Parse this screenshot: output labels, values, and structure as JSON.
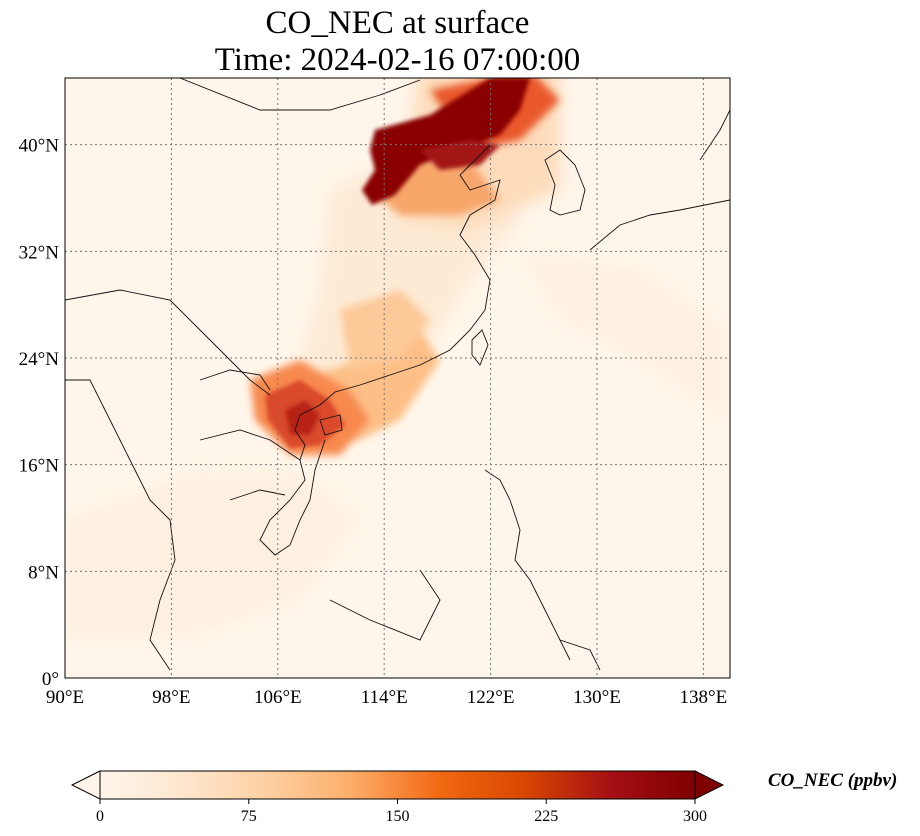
{
  "title_line1": "CO_NEC at surface",
  "title_line2": "Time: 2024-02-16 07:00:00",
  "map": {
    "lon_range": [
      90,
      140
    ],
    "lat_range": [
      0,
      45
    ],
    "lon_ticks": [
      {
        "value": 90,
        "label": "90°E"
      },
      {
        "value": 98,
        "label": "98°E"
      },
      {
        "value": 106,
        "label": "106°E"
      },
      {
        "value": 114,
        "label": "114°E"
      },
      {
        "value": 122,
        "label": "122°E"
      },
      {
        "value": 130,
        "label": "130°E"
      },
      {
        "value": 138,
        "label": "138°E"
      }
    ],
    "lat_ticks": [
      {
        "value": 0,
        "label": "0°"
      },
      {
        "value": 8,
        "label": "8°N"
      },
      {
        "value": 16,
        "label": "16°N"
      },
      {
        "value": 24,
        "label": "24°N"
      },
      {
        "value": 32,
        "label": "32°N"
      },
      {
        "value": 40,
        "label": "40°N"
      }
    ],
    "gridlines": true,
    "background_color": "#fff6eb"
  },
  "colorbar": {
    "label": "CO_NEC (ppbv)",
    "min": 0,
    "max": 300,
    "extend": "both",
    "ticks": [
      {
        "value": 0,
        "label": "0"
      },
      {
        "value": 75,
        "label": "75"
      },
      {
        "value": 150,
        "label": "150"
      },
      {
        "value": 225,
        "label": "225"
      },
      {
        "value": 300,
        "label": "300"
      }
    ],
    "colors": [
      "#fff5eb",
      "#fee6ce",
      "#fdd0a2",
      "#fdae6b",
      "#f16913",
      "#d94801",
      "#a50f15",
      "#7f0000"
    ]
  }
}
